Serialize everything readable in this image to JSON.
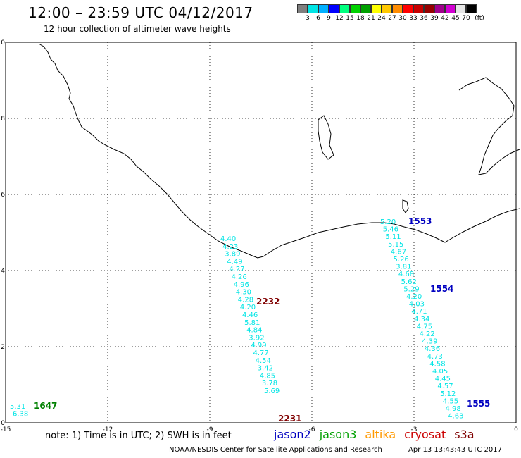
{
  "header": {
    "title": "12:00 – 23:59 UTC 04/12/2017",
    "subtitle": "12 hour collection of altimeter wave heights"
  },
  "colorbar": {
    "colors": [
      "#7f7f7f",
      "#00e5e5",
      "#00b0ff",
      "#0000ff",
      "#00ff7f",
      "#00d200",
      "#00a000",
      "#ffff00",
      "#ffc800",
      "#ff8c00",
      "#ff0000",
      "#c80000",
      "#960000",
      "#a0008c",
      "#d200d2",
      "#e6e6e6",
      "#000000"
    ],
    "labels": [
      "3",
      "6",
      "9",
      "12",
      "15",
      "18",
      "21",
      "24",
      "27",
      "30",
      "33",
      "36",
      "39",
      "42",
      "45",
      "70",
      "(ft)"
    ]
  },
  "axes": {
    "x_ticks": [
      "-15",
      "-12",
      "-9",
      "-6",
      "-3",
      "0"
    ],
    "y_ticks": [
      "0",
      "2",
      "4",
      "6",
      "8",
      "10"
    ],
    "xlim": [
      -15,
      0
    ],
    "ylim": [
      0,
      10
    ]
  },
  "tracks": [
    {
      "satellite": "cryosat",
      "color": "#00e5e5",
      "heights": [
        "4.40",
        "4.23",
        "3.89",
        "4.49",
        "4.27",
        "4.26",
        "4.96",
        "4.30",
        "4.28",
        "4.20",
        "4.46",
        "5.81",
        "4.84",
        "3.92",
        "4.99",
        "4.77",
        "4.54",
        "3.42",
        "4.85",
        "3.78",
        "5.69"
      ],
      "labels": [
        {
          "text": "2232",
          "color": "#800000"
        },
        {
          "text": "2231",
          "color": "#800000"
        }
      ]
    },
    {
      "satellite": "jason2",
      "color": "#00e5e5",
      "heights": [
        "5.20",
        "5.46",
        "5.11",
        "5.15",
        "4.67",
        "5.26",
        "3.81",
        "4.68",
        "5.62",
        "5.29",
        "4.20",
        "4.03",
        "4.71",
        "4.34",
        "4.75",
        "4.22",
        "4.39",
        "4.36",
        "4.73",
        "4.58",
        "4.05",
        "4.45",
        "4.57",
        "5.12",
        "4.55",
        "4.98",
        "4.63"
      ],
      "labels": [
        {
          "text": "1553",
          "color": "#0000c0"
        },
        {
          "text": "1554",
          "color": "#0000c0"
        },
        {
          "text": "1555",
          "color": "#0000c0"
        }
      ]
    },
    {
      "satellite": "jason3",
      "color": "#00e5e5",
      "heights": [
        "5.31",
        "6.38"
      ],
      "labels": [
        {
          "text": "1647",
          "color": "#008000"
        }
      ]
    }
  ],
  "footer": {
    "note": "note: 1) Time is in UTC; 2) SWH is in feet",
    "legend": [
      {
        "name": "jason2",
        "color": "#0000c0"
      },
      {
        "name": "jason3",
        "color": "#00a000"
      },
      {
        "name": "altika",
        "color": "#ff9900"
      },
      {
        "name": "cryosat",
        "color": "#cc0000"
      },
      {
        "name": "s3a",
        "color": "#800000"
      }
    ],
    "credit": "NOAA/NESDIS Center for Satellite Applications and Research",
    "timestamp": "Apr 13 13:43:43 UTC 2017"
  }
}
